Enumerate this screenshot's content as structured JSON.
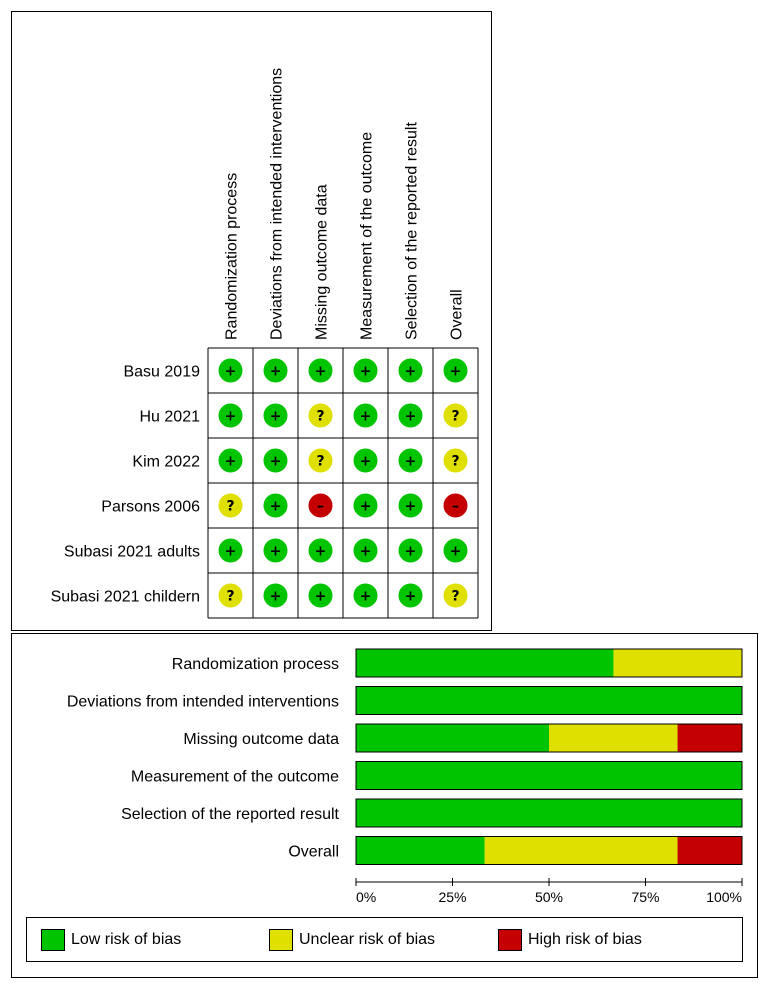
{
  "colors": {
    "low": "#00c400",
    "unclear": "#e0e000",
    "high": "#c40000"
  },
  "summary": {
    "domains": [
      "Randomization process",
      "Deviations from intended interventions",
      "Missing outcome data",
      "Measurement of the outcome",
      "Selection of the reported result",
      "Overall"
    ],
    "studies": [
      "Basu 2019",
      "Hu 2021",
      "Kim 2022",
      "Parsons 2006",
      "Subasi 2021 adults",
      "Subasi 2021 childern"
    ],
    "judgements": [
      [
        "low",
        "low",
        "low",
        "low",
        "low",
        "low"
      ],
      [
        "low",
        "low",
        "unclear",
        "low",
        "low",
        "unclear"
      ],
      [
        "low",
        "low",
        "unclear",
        "low",
        "low",
        "unclear"
      ],
      [
        "unclear",
        "low",
        "high",
        "low",
        "low",
        "high"
      ],
      [
        "low",
        "low",
        "low",
        "low",
        "low",
        "low"
      ],
      [
        "unclear",
        "low",
        "low",
        "low",
        "low",
        "unclear"
      ]
    ],
    "symbols": {
      "low": "+",
      "unclear": "?",
      "high": "–"
    }
  },
  "chart_data": {
    "type": "bar",
    "orientation": "horizontal-stacked-100",
    "categories": [
      "Randomization process",
      "Deviations from intended interventions",
      "Missing outcome data",
      "Measurement of the outcome",
      "Selection of the reported result",
      "Overall"
    ],
    "series": [
      {
        "name": "Low risk of bias",
        "key": "low",
        "values": [
          66.7,
          100,
          50,
          100,
          100,
          33.3
        ]
      },
      {
        "name": "Unclear risk of bias",
        "key": "unclear",
        "values": [
          33.3,
          0,
          33.3,
          0,
          0,
          50
        ]
      },
      {
        "name": "High risk of bias",
        "key": "high",
        "values": [
          0,
          0,
          16.7,
          0,
          0,
          16.7
        ]
      }
    ],
    "xlim": [
      0,
      100
    ],
    "xticks": [
      "0%",
      "25%",
      "50%",
      "75%",
      "100%"
    ],
    "legend": "bottom"
  }
}
